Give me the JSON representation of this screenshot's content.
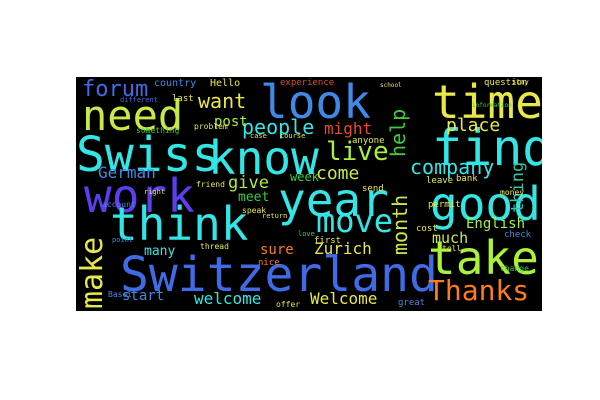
{
  "wordcloud": {
    "colors": {
      "background": "#000000",
      "page": "#ffffff",
      "cyan": "#33e6e6",
      "yellow": "#e8e84a",
      "lime": "#aaf03c",
      "green": "#3dcc3d",
      "blue": "#3f6be6",
      "purple": "#5c3ef0",
      "orange": "#ff7a1a",
      "red": "#e84a2a",
      "teal": "#2ec8a8"
    },
    "words": {
      "look": "look",
      "need": "need",
      "time": "time",
      "swiss": "Swiss",
      "know": "know",
      "find": "find",
      "work": "work",
      "year": "year",
      "good": "good",
      "think": "think",
      "move": "move",
      "make": "make",
      "switzerland": "Switzerland",
      "take": "take",
      "thanks": "Thanks",
      "forum": "forum",
      "want": "want",
      "people": "people",
      "might": "might",
      "help": "help",
      "place": "place",
      "live": "live",
      "company": "company",
      "thing": "thing",
      "come": "come",
      "german": "German",
      "give": "give",
      "week": "week",
      "month": "month",
      "meet": "meet",
      "english": "English",
      "much": "much",
      "zurich": "Zurich",
      "sure": "sure",
      "many": "many",
      "welcome_lower": "welcome",
      "welcome_cap": "Welcome",
      "start": "start",
      "post": "post",
      "country": "country",
      "hello": "Hello",
      "experience": "experience",
      "question": "question",
      "different": "different",
      "last": "last",
      "problem": "problem",
      "something": "something",
      "friend": "friend",
      "speak": "speak",
      "send": "send",
      "anyone": "anyone",
      "leave": "leave",
      "bank": "bank",
      "account": "account",
      "permit": "permit",
      "cost": "cost",
      "first": "first",
      "thread": "thread",
      "nice": "nice",
      "offer": "offer",
      "great": "great",
      "check": "check",
      "tell": "tell",
      "change": "change",
      "money": "money",
      "information": "information",
      "course": "course",
      "case": "case",
      "basel": "Basel",
      "right": "right",
      "return": "return",
      "point": "point",
      "love": "love",
      "stay": "stay",
      "school": "school"
    }
  }
}
